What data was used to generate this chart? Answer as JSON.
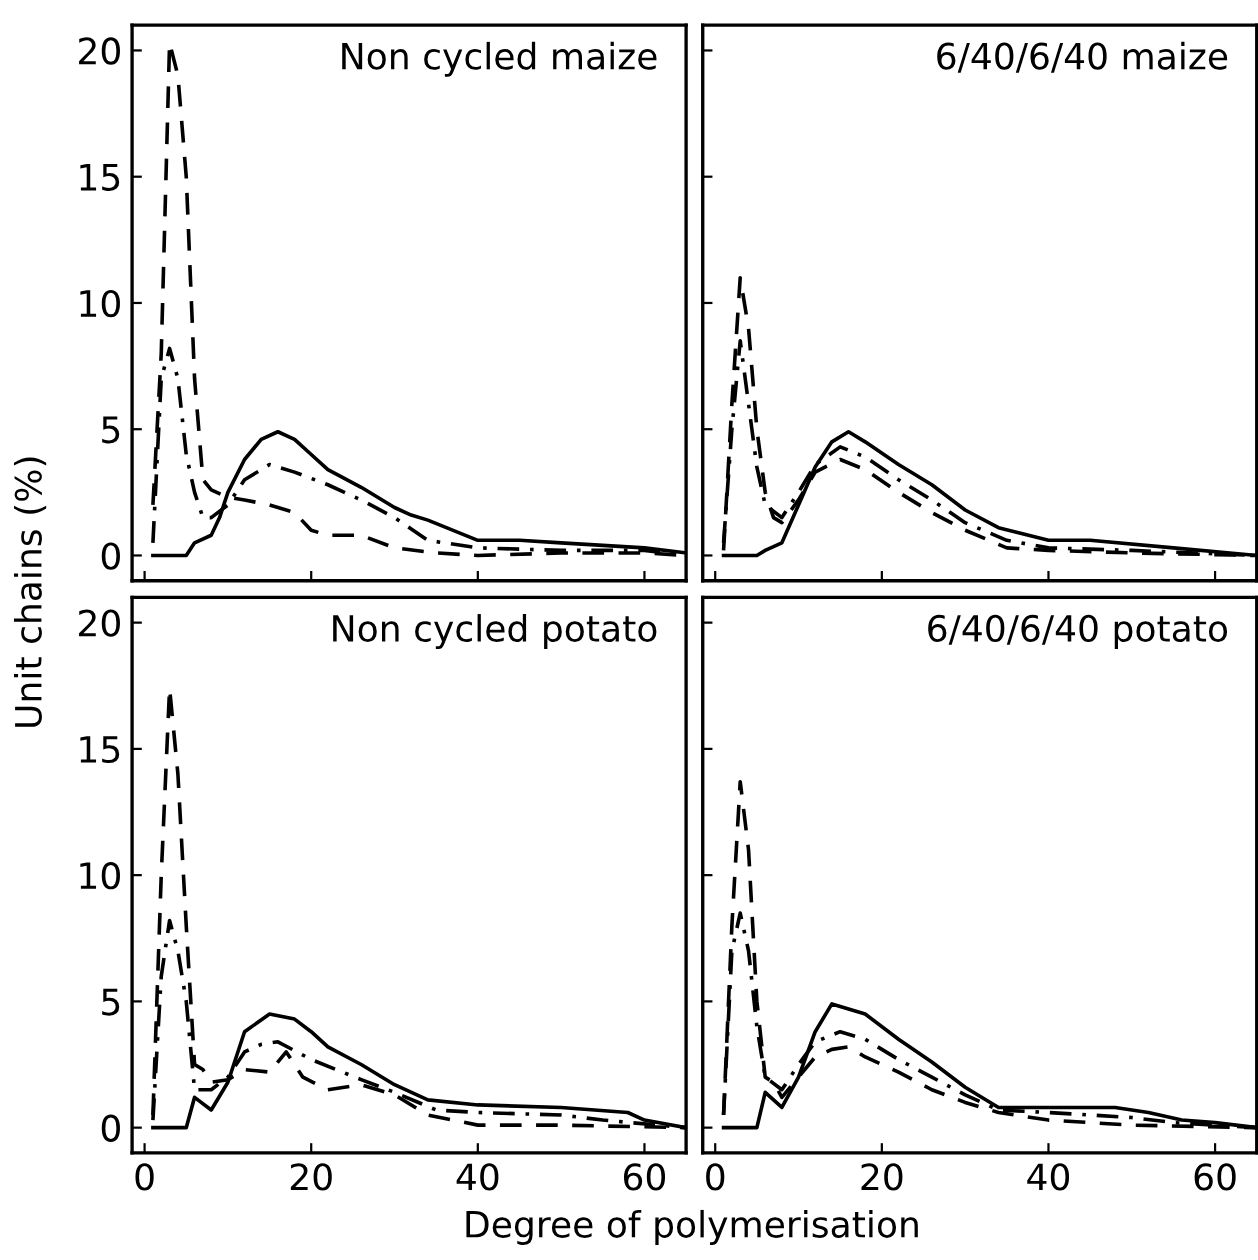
{
  "chart_data": [
    {
      "type": "line",
      "ylabel": "Unit chains (%)",
      "annotations": [
        "Non cycled maize"
      ],
      "xlim": [
        -1.5,
        65
      ],
      "ylim": [
        -1,
        21
      ],
      "xticks": [
        0,
        20,
        40,
        60
      ],
      "yticks": [
        0,
        5,
        10,
        15,
        20
      ],
      "tick_labels": "y",
      "grid": false,
      "marker": "none",
      "series": [
        {
          "color": "#000000",
          "line_style": "solid",
          "x": [
            1,
            5,
            6,
            8,
            9,
            10,
            12,
            14,
            16,
            18,
            20,
            22,
            26,
            30,
            32,
            34,
            40,
            45,
            50,
            55,
            60,
            65
          ],
          "values": [
            0,
            0,
            0.5,
            0.8,
            1.5,
            2.5,
            3.8,
            4.6,
            4.9,
            4.6,
            4,
            3.4,
            2.7,
            1.9,
            1.6,
            1.4,
            0.6,
            0.6,
            0.5,
            0.4,
            0.3,
            0.1
          ]
        },
        {
          "color": "#000000",
          "line_style": "dashdot",
          "x": [
            1,
            2,
            3,
            4,
            5,
            6,
            7,
            8,
            10,
            12,
            15,
            18,
            22,
            26,
            30,
            34,
            40,
            50,
            60,
            65
          ],
          "values": [
            0.5,
            7,
            8.2,
            7,
            4,
            2.5,
            1.5,
            1.5,
            2,
            3,
            3.6,
            3.3,
            2.8,
            2.2,
            1.5,
            0.6,
            0.3,
            0.2,
            0.2,
            0
          ]
        },
        {
          "color": "#000000",
          "line_style": "dashed",
          "x": [
            1,
            2,
            3,
            4,
            5,
            6,
            7,
            8,
            10,
            12,
            15,
            18,
            20,
            22,
            26,
            30,
            35,
            40,
            50,
            60,
            65
          ],
          "values": [
            2,
            8,
            20.3,
            19,
            15,
            7,
            3,
            2.6,
            2.3,
            2.2,
            2.0,
            1.7,
            1.0,
            0.8,
            0.8,
            0.3,
            0.1,
            0,
            0.1,
            0.1,
            0
          ]
        }
      ]
    },
    {
      "type": "line",
      "annotations": [
        "6/40/6/40 maize"
      ],
      "xlim": [
        -1.5,
        65
      ],
      "ylim": [
        -1,
        21
      ],
      "xticks": [
        0,
        20,
        40,
        60
      ],
      "yticks": [
        0,
        5,
        10,
        15,
        20
      ],
      "tick_labels": false,
      "grid": false,
      "marker": "none",
      "series": [
        {
          "color": "#000000",
          "line_style": "solid",
          "x": [
            1,
            5,
            6,
            8,
            10,
            12,
            14,
            16,
            18,
            22,
            26,
            30,
            34,
            40,
            45,
            55,
            65
          ],
          "values": [
            0,
            0,
            0.2,
            0.5,
            2.0,
            3.5,
            4.5,
            4.9,
            4.5,
            3.6,
            2.8,
            1.8,
            1.1,
            0.6,
            0.6,
            0.3,
            0
          ]
        },
        {
          "color": "#000000",
          "line_style": "dashdot",
          "x": [
            1,
            2,
            3,
            4,
            5,
            6,
            8,
            10,
            12,
            15,
            18,
            22,
            26,
            30,
            35,
            40,
            50,
            65
          ],
          "values": [
            0.5,
            5,
            8.5,
            6,
            3.5,
            2,
            1.5,
            2.5,
            3.6,
            4.3,
            3.9,
            3,
            2.2,
            1.3,
            0.6,
            0.3,
            0.2,
            0
          ]
        },
        {
          "color": "#000000",
          "line_style": "dashed",
          "x": [
            1,
            2,
            3,
            4,
            5,
            6,
            7,
            8,
            10,
            12,
            15,
            18,
            22,
            26,
            30,
            35,
            40,
            50,
            65
          ],
          "values": [
            0.2,
            6,
            11,
            9,
            5,
            2.5,
            1.5,
            1.3,
            2.2,
            3.3,
            3.8,
            3.4,
            2.5,
            1.7,
            1.0,
            0.3,
            0.2,
            0.1,
            0
          ]
        }
      ]
    },
    {
      "type": "line",
      "xlabel": "Degree of polymerisation",
      "annotations": [
        "Non cycled potato"
      ],
      "xlim": [
        -1.5,
        65
      ],
      "ylim": [
        -1,
        21
      ],
      "xticks": [
        0,
        20,
        40,
        60
      ],
      "yticks": [
        0,
        5,
        10,
        15,
        20
      ],
      "grid": false,
      "marker": "none",
      "series": [
        {
          "color": "#000000",
          "line_style": "solid",
          "x": [
            1,
            5,
            6,
            8,
            10,
            12,
            15,
            18,
            20,
            22,
            26,
            30,
            34,
            40,
            50,
            58,
            60,
            65
          ],
          "values": [
            0,
            0,
            1.2,
            0.7,
            1.8,
            3.8,
            4.5,
            4.3,
            3.8,
            3.2,
            2.5,
            1.7,
            1.1,
            0.9,
            0.8,
            0.6,
            0.3,
            0
          ]
        },
        {
          "color": "#000000",
          "line_style": "dashdot",
          "x": [
            1,
            2,
            3,
            4,
            5,
            6,
            8,
            10,
            12,
            14,
            16,
            20,
            26,
            30,
            35,
            40,
            50,
            55,
            65
          ],
          "values": [
            0.3,
            6,
            8.2,
            7,
            5,
            1.5,
            1.5,
            2,
            3.0,
            3.3,
            3.4,
            2.7,
            1.9,
            1.4,
            0.7,
            0.6,
            0.5,
            0.3,
            0
          ]
        },
        {
          "color": "#000000",
          "line_style": "dashed",
          "x": [
            1,
            2,
            3,
            4,
            5,
            6,
            7,
            8,
            10,
            12,
            15,
            17,
            19,
            22,
            26,
            30,
            34,
            40,
            50,
            65
          ],
          "values": [
            0.5,
            10,
            17.4,
            14,
            8,
            2.5,
            2.3,
            1.8,
            1.9,
            2.3,
            2.2,
            3.0,
            2.0,
            1.5,
            1.7,
            1.3,
            0.5,
            0.1,
            0.1,
            0
          ]
        }
      ]
    },
    {
      "type": "line",
      "annotations": [
        "6/40/6/40 potato"
      ],
      "xlim": [
        -1.5,
        65
      ],
      "ylim": [
        -1,
        21
      ],
      "xticks": [
        0,
        20,
        40,
        60
      ],
      "yticks": [
        0,
        5,
        10,
        15,
        20
      ],
      "tick_labels": "x",
      "grid": false,
      "marker": "none",
      "series": [
        {
          "color": "#000000",
          "line_style": "solid",
          "x": [
            1,
            5,
            6,
            8,
            10,
            12,
            14,
            18,
            22,
            26,
            30,
            34,
            40,
            48,
            52,
            56,
            60,
            65
          ],
          "values": [
            0,
            0,
            1.4,
            0.8,
            2.0,
            3.8,
            4.9,
            4.5,
            3.5,
            2.6,
            1.6,
            0.8,
            0.8,
            0.8,
            0.6,
            0.3,
            0.2,
            0
          ]
        },
        {
          "color": "#000000",
          "line_style": "dashdot",
          "x": [
            1,
            2,
            3,
            4,
            5,
            6,
            8,
            10,
            12,
            15,
            18,
            22,
            26,
            30,
            34,
            40,
            50,
            55,
            65
          ],
          "values": [
            0.5,
            7,
            8.5,
            7,
            4,
            2,
            1.5,
            2.5,
            3.4,
            3.8,
            3.5,
            2.7,
            2.0,
            1.3,
            0.7,
            0.6,
            0.4,
            0.2,
            0
          ]
        },
        {
          "color": "#000000",
          "line_style": "dashed",
          "x": [
            1,
            2,
            3,
            4,
            5,
            6,
            7,
            8,
            10,
            12,
            14,
            16,
            18,
            22,
            26,
            30,
            34,
            40,
            50,
            65
          ],
          "values": [
            0.5,
            8,
            13.7,
            11,
            5,
            2,
            1.8,
            1.2,
            2.0,
            2.8,
            3.1,
            3.2,
            2.8,
            2.2,
            1.5,
            1.0,
            0.6,
            0.3,
            0.1,
            0
          ]
        }
      ]
    }
  ]
}
